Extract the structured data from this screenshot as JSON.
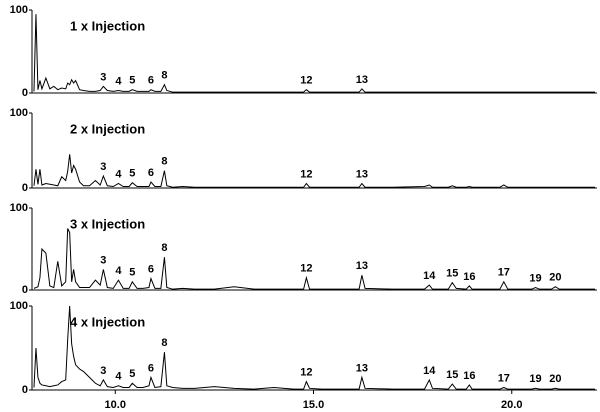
{
  "chart_data": [
    {
      "type": "line",
      "title": "1 x Injection",
      "color": "#000000",
      "x": [
        7.95,
        8.0,
        8.05,
        8.1,
        8.15,
        8.25,
        8.35,
        8.45,
        8.55,
        8.65,
        8.75,
        8.8,
        8.85,
        8.9,
        8.95,
        9.0,
        9.1,
        9.2,
        9.35,
        9.5,
        9.62,
        9.7,
        9.8,
        9.95,
        10.08,
        10.2,
        10.35,
        10.43,
        10.55,
        10.7,
        10.85,
        10.9,
        11.0,
        11.15,
        11.24,
        11.3,
        11.45,
        11.7,
        12.0,
        12.5,
        13.0,
        13.5,
        14.0,
        14.5,
        14.75,
        14.82,
        14.9,
        15.2,
        15.8,
        16.15,
        16.22,
        16.3,
        17.0,
        17.8,
        17.92,
        18.0,
        18.4,
        18.5,
        18.6,
        18.85,
        18.93,
        19.0,
        19.7,
        19.8,
        19.9,
        20.5,
        20.6,
        20.7,
        21.0,
        21.1,
        21.2,
        21.6,
        22.1
      ],
      "values": [
        2,
        95,
        4,
        15,
        5,
        18,
        5,
        8,
        4,
        6,
        5,
        12,
        10,
        16,
        12,
        15,
        4,
        3,
        2,
        2,
        3,
        8,
        3,
        2,
        3,
        2,
        2,
        4,
        2,
        2,
        2,
        4,
        2,
        2,
        10,
        3,
        1,
        1,
        1,
        1,
        1,
        1,
        1,
        1,
        1,
        4,
        1,
        1,
        1,
        1,
        5,
        1,
        1,
        1,
        1,
        1,
        1,
        1,
        1,
        1,
        1,
        1,
        1,
        1,
        1,
        1,
        1,
        1,
        1,
        1,
        1,
        1,
        1
      ],
      "xlim": [
        7.9,
        22.15
      ],
      "ylim": [
        0,
        100
      ],
      "yticks": [
        0,
        100
      ],
      "annotations": [
        {
          "text": "3",
          "x": 9.7,
          "y": 8
        },
        {
          "text": "4",
          "x": 10.08,
          "y": 3
        },
        {
          "text": "5",
          "x": 10.43,
          "y": 4
        },
        {
          "text": "6",
          "x": 10.9,
          "y": 4
        },
        {
          "text": "8",
          "x": 11.24,
          "y": 10
        },
        {
          "text": "12",
          "x": 14.82,
          "y": 4
        },
        {
          "text": "13",
          "x": 16.22,
          "y": 5
        }
      ]
    },
    {
      "type": "line",
      "title": "2 x Injection",
      "color": "#000000",
      "x": [
        7.95,
        8.0,
        8.05,
        8.1,
        8.15,
        8.25,
        8.35,
        8.45,
        8.55,
        8.65,
        8.75,
        8.8,
        8.85,
        8.9,
        8.95,
        9.0,
        9.1,
        9.2,
        9.35,
        9.5,
        9.62,
        9.7,
        9.8,
        9.95,
        10.08,
        10.2,
        10.35,
        10.43,
        10.55,
        10.7,
        10.85,
        10.9,
        11.0,
        11.15,
        11.24,
        11.3,
        11.45,
        11.7,
        12.0,
        12.5,
        13.0,
        13.5,
        14.0,
        14.5,
        14.75,
        14.82,
        14.9,
        15.2,
        15.8,
        16.15,
        16.22,
        16.3,
        17.0,
        17.8,
        17.92,
        18.0,
        18.4,
        18.5,
        18.6,
        18.85,
        18.93,
        19.0,
        19.7,
        19.8,
        19.9,
        20.5,
        20.6,
        20.7,
        21.0,
        21.1,
        21.2,
        21.6,
        22.1
      ],
      "values": [
        3,
        25,
        5,
        25,
        4,
        6,
        5,
        4,
        3,
        15,
        10,
        22,
        45,
        20,
        30,
        25,
        8,
        3,
        3,
        10,
        4,
        16,
        3,
        2,
        6,
        2,
        2,
        7,
        2,
        2,
        2,
        8,
        2,
        2,
        23,
        3,
        1,
        2,
        1,
        1,
        1,
        1,
        1,
        1,
        1,
        6,
        1,
        1,
        1,
        1,
        6,
        1,
        1,
        2,
        4,
        1,
        1,
        3,
        1,
        1,
        2,
        1,
        1,
        4,
        1,
        1,
        1,
        1,
        1,
        1,
        1,
        1,
        1
      ],
      "xlim": [
        7.9,
        22.15
      ],
      "ylim": [
        0,
        100
      ],
      "yticks": [
        0,
        100
      ],
      "annotations": [
        {
          "text": "3",
          "x": 9.7,
          "y": 16
        },
        {
          "text": "4",
          "x": 10.08,
          "y": 6
        },
        {
          "text": "5",
          "x": 10.43,
          "y": 7
        },
        {
          "text": "6",
          "x": 10.9,
          "y": 8
        },
        {
          "text": "8",
          "x": 11.24,
          "y": 23
        },
        {
          "text": "12",
          "x": 14.82,
          "y": 6
        },
        {
          "text": "13",
          "x": 16.22,
          "y": 6
        }
      ]
    },
    {
      "type": "line",
      "title": "3 x Injection",
      "color": "#000000",
      "x": [
        7.95,
        8.0,
        8.05,
        8.1,
        8.15,
        8.25,
        8.35,
        8.45,
        8.55,
        8.65,
        8.75,
        8.8,
        8.85,
        8.9,
        8.95,
        9.0,
        9.1,
        9.2,
        9.35,
        9.5,
        9.62,
        9.7,
        9.8,
        9.95,
        10.08,
        10.2,
        10.35,
        10.43,
        10.55,
        10.7,
        10.85,
        10.9,
        11.0,
        11.15,
        11.24,
        11.3,
        11.45,
        11.7,
        12.0,
        12.5,
        13.0,
        13.5,
        14.0,
        14.5,
        14.75,
        14.82,
        14.9,
        15.2,
        15.8,
        16.15,
        16.22,
        16.3,
        17.0,
        17.8,
        17.92,
        18.0,
        18.4,
        18.5,
        18.6,
        18.85,
        18.93,
        19.0,
        19.7,
        19.8,
        19.9,
        20.5,
        20.6,
        20.7,
        21.0,
        21.1,
        21.2,
        21.6,
        22.1
      ],
      "values": [
        2,
        3,
        4,
        15,
        50,
        45,
        5,
        3,
        35,
        5,
        10,
        75,
        70,
        10,
        25,
        10,
        3,
        3,
        3,
        12,
        6,
        25,
        3,
        2,
        12,
        2,
        2,
        10,
        2,
        2,
        3,
        14,
        2,
        2,
        40,
        3,
        1,
        2,
        1,
        1,
        4,
        1,
        1,
        1,
        1,
        15,
        1,
        1,
        1,
        1,
        18,
        2,
        1,
        1,
        6,
        1,
        1,
        9,
        2,
        1,
        5,
        1,
        1,
        10,
        1,
        1,
        3,
        1,
        1,
        4,
        1,
        1,
        1
      ],
      "xlim": [
        7.9,
        22.15
      ],
      "ylim": [
        0,
        100
      ],
      "yticks": [
        0,
        100
      ],
      "annotations": [
        {
          "text": "3",
          "x": 9.7,
          "y": 25
        },
        {
          "text": "4",
          "x": 10.08,
          "y": 12
        },
        {
          "text": "5",
          "x": 10.43,
          "y": 10
        },
        {
          "text": "6",
          "x": 10.9,
          "y": 14
        },
        {
          "text": "8",
          "x": 11.24,
          "y": 40
        },
        {
          "text": "12",
          "x": 14.82,
          "y": 15
        },
        {
          "text": "13",
          "x": 16.22,
          "y": 18
        },
        {
          "text": "14",
          "x": 17.92,
          "y": 6
        },
        {
          "text": "15",
          "x": 18.5,
          "y": 9
        },
        {
          "text": "16",
          "x": 18.93,
          "y": 5
        },
        {
          "text": "17",
          "x": 19.8,
          "y": 10
        },
        {
          "text": "19",
          "x": 20.6,
          "y": 3
        },
        {
          "text": "20",
          "x": 21.1,
          "y": 4
        }
      ]
    },
    {
      "type": "line",
      "title": "4 x Injection",
      "color": "#000000",
      "x": [
        7.95,
        8.0,
        8.05,
        8.1,
        8.15,
        8.25,
        8.35,
        8.45,
        8.55,
        8.65,
        8.75,
        8.8,
        8.85,
        8.9,
        8.95,
        9.0,
        9.1,
        9.2,
        9.35,
        9.5,
        9.62,
        9.7,
        9.8,
        9.95,
        10.08,
        10.2,
        10.35,
        10.43,
        10.55,
        10.7,
        10.85,
        10.9,
        11.0,
        11.15,
        11.24,
        11.3,
        11.45,
        11.7,
        12.0,
        12.5,
        13.0,
        13.5,
        14.0,
        14.5,
        14.75,
        14.82,
        14.9,
        15.2,
        15.8,
        16.15,
        16.22,
        16.3,
        17.0,
        17.8,
        17.92,
        18.0,
        18.4,
        18.5,
        18.6,
        18.85,
        18.93,
        19.0,
        19.7,
        19.8,
        19.9,
        20.5,
        20.6,
        20.7,
        21.0,
        21.1,
        21.2,
        21.6,
        22.1
      ],
      "values": [
        3,
        50,
        15,
        8,
        6,
        5,
        4,
        5,
        6,
        10,
        12,
        60,
        100,
        55,
        40,
        30,
        25,
        22,
        15,
        8,
        5,
        12,
        4,
        3,
        5,
        3,
        3,
        8,
        3,
        3,
        5,
        15,
        3,
        4,
        45,
        5,
        3,
        2,
        2,
        4,
        2,
        1,
        3,
        1,
        1,
        10,
        2,
        1,
        1,
        1,
        15,
        2,
        1,
        1,
        12,
        2,
        1,
        7,
        1,
        1,
        6,
        1,
        1,
        3,
        1,
        1,
        2,
        1,
        1,
        2,
        1,
        1,
        1
      ],
      "xlim": [
        7.9,
        22.15
      ],
      "ylim": [
        0,
        100
      ],
      "yticks": [
        0,
        100
      ],
      "xticks": [
        {
          "value": 10,
          "label": "10.0"
        },
        {
          "value": 15,
          "label": "15.0"
        },
        {
          "value": 20,
          "label": "20.0"
        }
      ],
      "annotations": [
        {
          "text": "3",
          "x": 9.7,
          "y": 12
        },
        {
          "text": "4",
          "x": 10.08,
          "y": 5
        },
        {
          "text": "5",
          "x": 10.43,
          "y": 8
        },
        {
          "text": "6",
          "x": 10.9,
          "y": 15
        },
        {
          "text": "8",
          "x": 11.24,
          "y": 45
        },
        {
          "text": "12",
          "x": 14.82,
          "y": 10
        },
        {
          "text": "13",
          "x": 16.22,
          "y": 15
        },
        {
          "text": "14",
          "x": 17.92,
          "y": 12
        },
        {
          "text": "15",
          "x": 18.5,
          "y": 7
        },
        {
          "text": "16",
          "x": 18.93,
          "y": 6
        },
        {
          "text": "17",
          "x": 19.8,
          "y": 3
        },
        {
          "text": "19",
          "x": 20.6,
          "y": 2
        },
        {
          "text": "20",
          "x": 21.1,
          "y": 2
        }
      ]
    }
  ]
}
